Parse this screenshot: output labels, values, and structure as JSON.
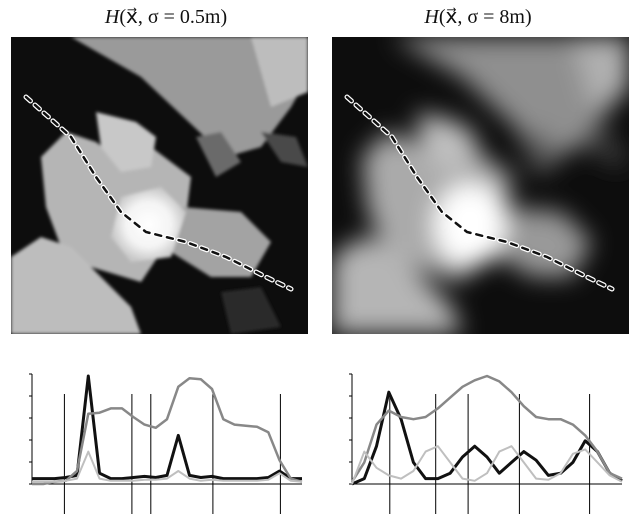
{
  "figure": {
    "left_label_func": "H",
    "left_label_args": "(x⃗, σ = 0.5m)",
    "right_label_func": "H",
    "right_label_args": "(x⃗, σ = 8m)"
  },
  "colors": {
    "dark": "#111111",
    "mid": "#888888",
    "light": "#bfbfbf",
    "path_dark": "#111111",
    "path_light": "#ffffff"
  },
  "chart_data": [
    {
      "type": "line",
      "title": "",
      "xlabel": "",
      "ylabel": "",
      "grid": false,
      "series": [
        {
          "values": [
            0.05,
            0.05,
            0.05,
            0.06,
            0.08,
            1.0,
            0.1,
            0.05,
            0.05,
            0.06,
            0.07,
            0.06,
            0.08,
            0.45,
            0.08,
            0.06,
            0.07,
            0.05,
            0.05,
            0.05,
            0.05,
            0.06,
            0.12,
            0.05,
            0.05
          ]
        },
        {
          "values": [
            0.0,
            0.0,
            0.02,
            0.03,
            0.12,
            0.65,
            0.66,
            0.7,
            0.7,
            0.62,
            0.55,
            0.52,
            0.6,
            0.9,
            0.98,
            0.97,
            0.88,
            0.6,
            0.55,
            0.54,
            0.53,
            0.48,
            0.22,
            0.05,
            0.02
          ]
        },
        {
          "values": [
            0.02,
            0.02,
            0.02,
            0.03,
            0.05,
            0.3,
            0.05,
            0.03,
            0.03,
            0.03,
            0.04,
            0.04,
            0.05,
            0.12,
            0.05,
            0.03,
            0.04,
            0.03,
            0.03,
            0.03,
            0.03,
            0.04,
            0.1,
            0.03,
            0.02
          ]
        }
      ]
    },
    {
      "type": "line",
      "title": "",
      "xlabel": "",
      "ylabel": "",
      "grid": false,
      "series": [
        {
          "values": [
            0.0,
            0.05,
            0.35,
            0.85,
            0.6,
            0.2,
            0.05,
            0.05,
            0.1,
            0.25,
            0.35,
            0.25,
            0.1,
            0.2,
            0.3,
            0.22,
            0.08,
            0.1,
            0.2,
            0.4,
            0.3,
            0.1,
            0.03
          ]
        },
        {
          "values": [
            0.02,
            0.2,
            0.55,
            0.68,
            0.62,
            0.6,
            0.62,
            0.7,
            0.8,
            0.9,
            0.96,
            1.0,
            0.95,
            0.85,
            0.72,
            0.62,
            0.6,
            0.6,
            0.55,
            0.45,
            0.3,
            0.1,
            0.05
          ]
        },
        {
          "values": [
            0.0,
            0.3,
            0.15,
            0.08,
            0.05,
            0.12,
            0.3,
            0.35,
            0.2,
            0.05,
            0.03,
            0.1,
            0.3,
            0.35,
            0.2,
            0.05,
            0.04,
            0.1,
            0.28,
            0.32,
            0.2,
            0.08,
            0.02
          ]
        }
      ]
    }
  ]
}
